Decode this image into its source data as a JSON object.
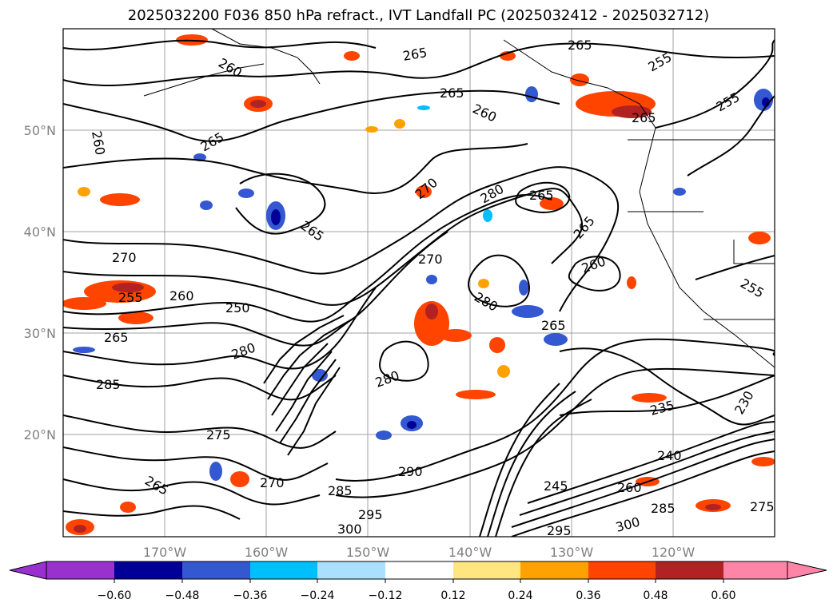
{
  "title": "2025032200 F036 850 hPa refract., IVT Landfall PC (2025032412 - 2025032712)",
  "map": {
    "lon_ticks": [
      "170°W",
      "160°W",
      "150°W",
      "140°W",
      "130°W",
      "120°W"
    ],
    "lat_ticks": [
      "50°N",
      "40°N",
      "30°N",
      "20°N"
    ],
    "lon_range": [
      -180,
      -110
    ],
    "lat_range": [
      10,
      60
    ],
    "contour_labels": [
      "265",
      "260",
      "265",
      "265",
      "255",
      "265",
      "255",
      "260",
      "260",
      "265",
      "265",
      "270",
      "280",
      "265",
      "265",
      "270",
      "260",
      "265",
      "270",
      "255",
      "255",
      "260",
      "250",
      "265",
      "280",
      "280",
      "280",
      "285",
      "265",
      "275",
      "270",
      "285",
      "290",
      "295",
      "300",
      "245",
      "260",
      "240",
      "235",
      "230",
      "275",
      "300",
      "295",
      "285"
    ],
    "colors": {
      "gridline": "#a0a0a0",
      "tick_text": "#808080"
    }
  },
  "colorbar": {
    "labels": [
      "−0.60",
      "−0.48",
      "−0.36",
      "−0.24",
      "−0.12",
      "0.12",
      "0.24",
      "0.36",
      "0.48",
      "0.60"
    ],
    "values": [
      -0.6,
      -0.48,
      -0.36,
      -0.24,
      -0.12,
      0.12,
      0.24,
      0.36,
      0.48,
      0.6
    ],
    "colors": [
      "#9b30d0",
      "#000099",
      "#3358d1",
      "#00bfff",
      "#aadfff",
      "#ffffff",
      "#ffe680",
      "#ffa200",
      "#ff4400",
      "#b22222",
      "#ff85a8"
    ]
  }
}
